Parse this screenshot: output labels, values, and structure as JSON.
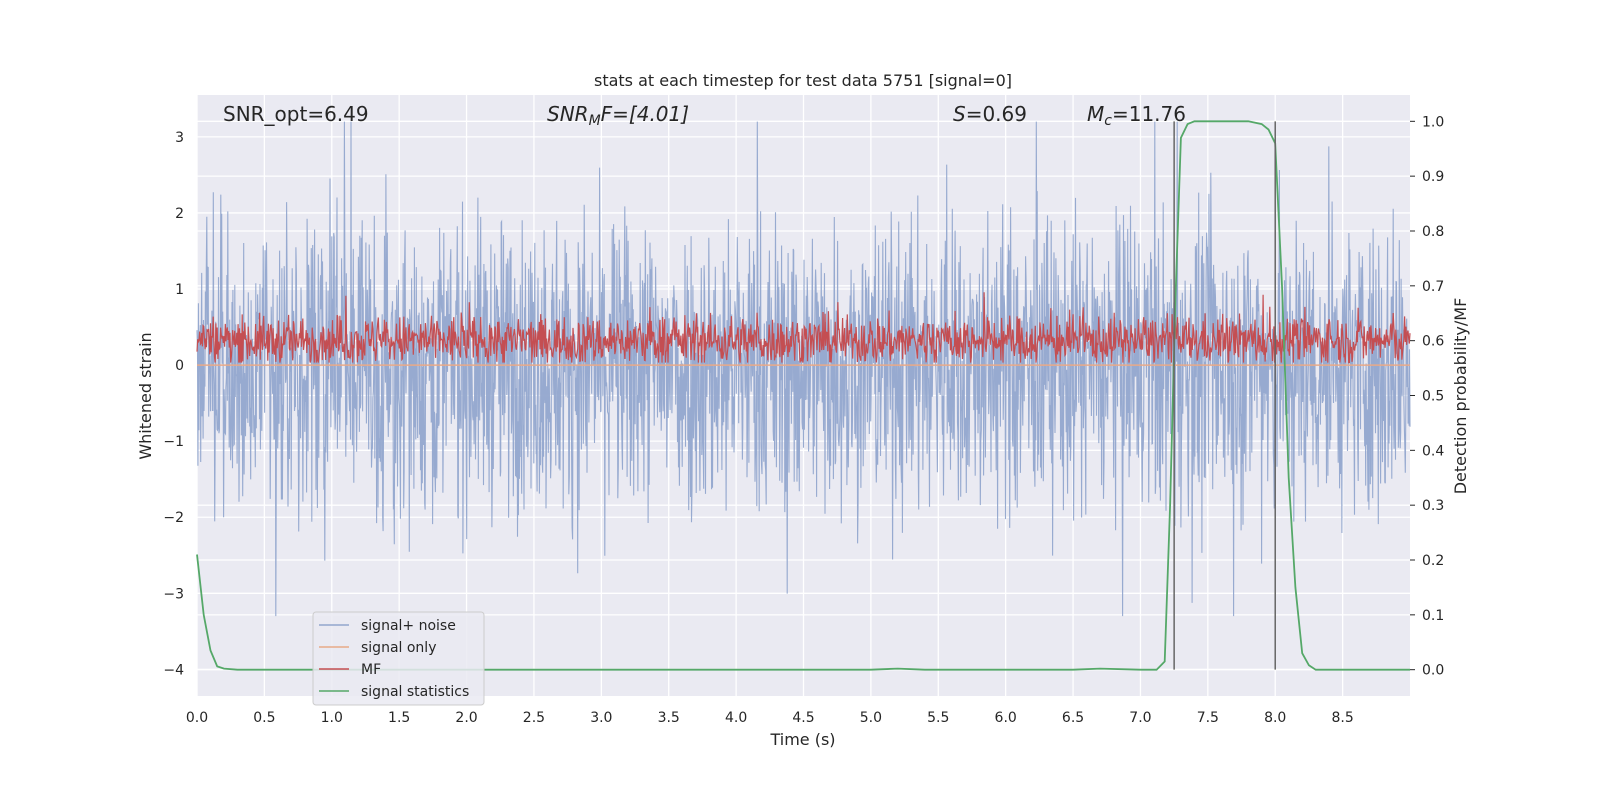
{
  "chart_data": {
    "type": "line",
    "title": "stats at each timestep for test data 5751 [signal=0]",
    "xlabel": "Time (s)",
    "ylabel": "Whitened strain",
    "ylabel_right": "Detection probability/MF",
    "xlim": [
      0.0,
      9.0
    ],
    "ylim": [
      -4.35,
      3.55
    ],
    "ylim_right": [
      -0.048,
      1.048
    ],
    "x_ticks": [
      "0.0",
      "0.5",
      "1.0",
      "1.5",
      "2.0",
      "2.5",
      "3.0",
      "3.5",
      "4.0",
      "4.5",
      "5.0",
      "5.5",
      "6.0",
      "6.5",
      "7.0",
      "7.5",
      "8.0",
      "8.5"
    ],
    "y_ticks_left": [
      "3",
      "2",
      "1",
      "0",
      "−1",
      "−2",
      "−3",
      "−4"
    ],
    "y_ticks_right": [
      "1.0",
      "0.9",
      "0.8",
      "0.7",
      "0.6",
      "0.5",
      "0.4",
      "0.3",
      "0.2",
      "0.1",
      "0.0"
    ],
    "grid": true,
    "legend_position": "lower-left",
    "annotations": {
      "snr_opt": "SNR_opt=6.49",
      "snr_mf_sym": "SNR",
      "snr_mf_sub": "M",
      "snr_mf_rest": "F=[4.01]",
      "s_sym": "S",
      "s_rest": "=0.69",
      "mc_sym": "M",
      "mc_sub": "c",
      "mc_rest": "=11.76"
    },
    "vertical_lines": [
      7.25,
      8.0
    ],
    "series": [
      {
        "name": "signal+ noise",
        "color": "#92a6cd",
        "axis": "left",
        "description_values": {
          "x_range": [
            0.0,
            9.0
          ],
          "y_range_approx": [
            -3.3,
            3.2
          ]
        }
      },
      {
        "name": "signal only",
        "color": "#e8a988",
        "axis": "left",
        "values_constant": 0.0
      },
      {
        "name": "MF",
        "color": "#c44e52",
        "axis": "right",
        "y_range_approx": [
          0.56,
          0.69
        ]
      },
      {
        "name": "signal statistics",
        "color": "#55a868",
        "axis": "right",
        "x": [
          0.0,
          0.05,
          0.1,
          0.15,
          0.2,
          0.3,
          0.5,
          1.0,
          2.0,
          3.0,
          4.0,
          5.0,
          5.2,
          5.4,
          6.0,
          6.5,
          6.7,
          7.0,
          7.12,
          7.18,
          7.22,
          7.26,
          7.3,
          7.35,
          7.4,
          7.45,
          7.5,
          7.6,
          7.8,
          7.9,
          7.95,
          8.0,
          8.05,
          8.1,
          8.15,
          8.2,
          8.25,
          8.3,
          8.4,
          8.6,
          9.0
        ],
        "y": [
          0.21,
          0.1,
          0.035,
          0.006,
          0.002,
          0.0,
          0.0,
          0.0,
          0.0,
          0.0,
          0.0,
          0.0,
          0.002,
          0.0,
          0.0,
          0.0,
          0.002,
          0.0,
          0.0,
          0.015,
          0.3,
          0.68,
          0.97,
          0.995,
          1.0,
          1.0,
          1.0,
          1.0,
          1.0,
          0.995,
          0.985,
          0.96,
          0.7,
          0.35,
          0.15,
          0.03,
          0.008,
          0.0,
          0.0,
          0.0,
          0.0
        ]
      }
    ]
  }
}
